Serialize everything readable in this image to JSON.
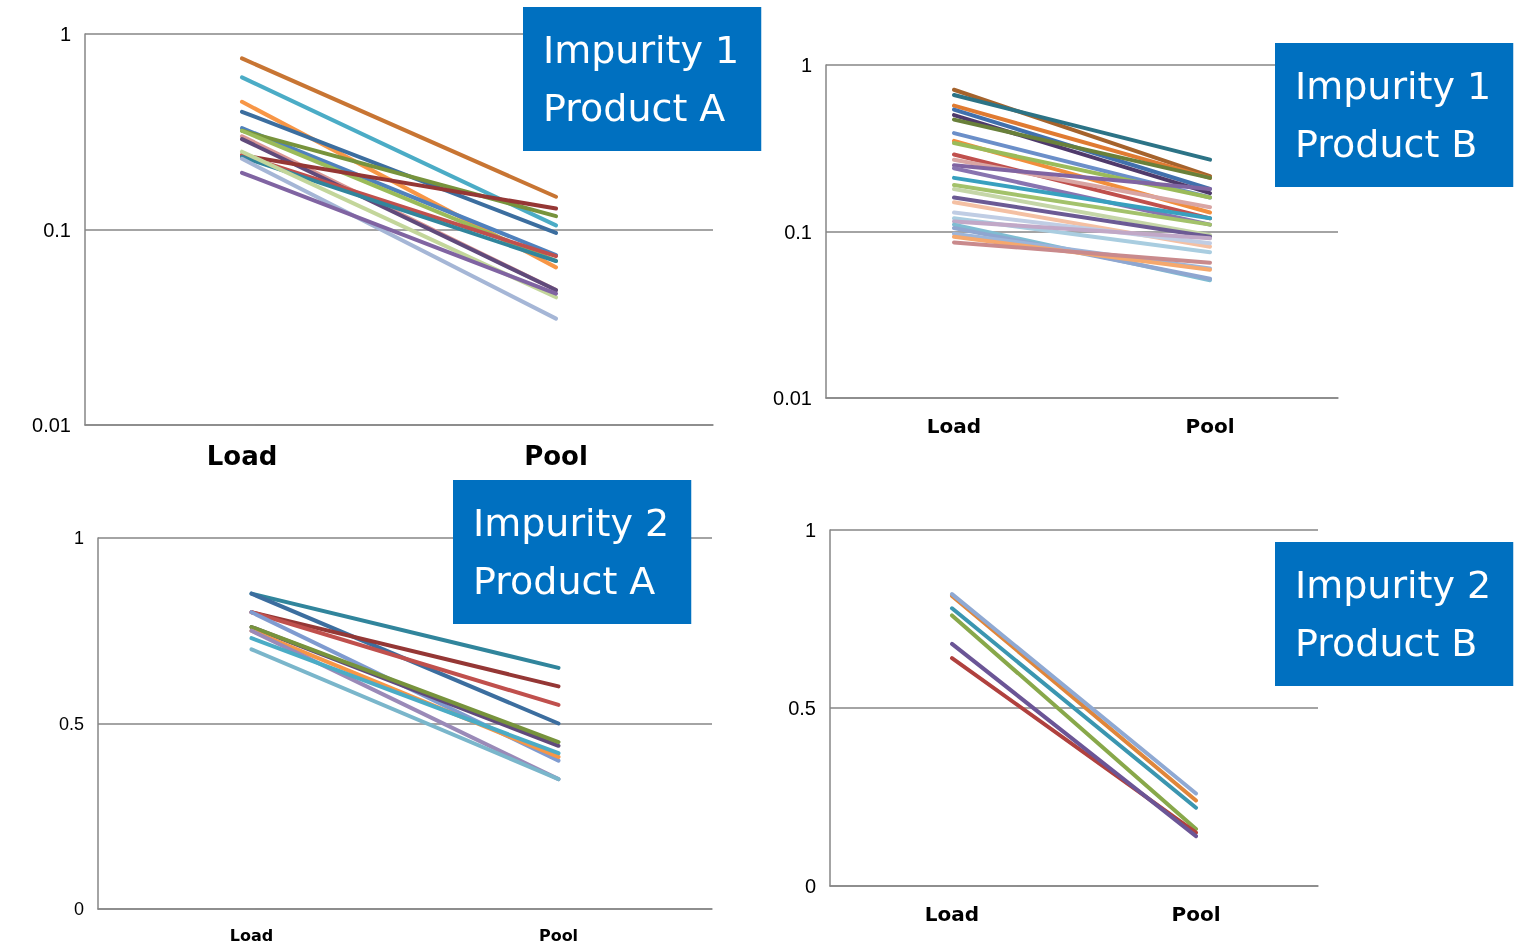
{
  "chart_data": [
    {
      "type": "line",
      "title": "Impurity 1\nProduct A",
      "categories": [
        "Load",
        "Pool"
      ],
      "log": "y",
      "ylim": [
        0.01,
        1
      ],
      "yticks": [
        0.01,
        0.1,
        1
      ],
      "grid": "y",
      "series": [
        {
          "color": "#c87533",
          "values": [
            0.75,
            0.147
          ]
        },
        {
          "color": "#4bacc6",
          "values": [
            0.6,
            0.105
          ]
        },
        {
          "color": "#f79646",
          "values": [
            0.45,
            0.064
          ]
        },
        {
          "color": "#3c6e9f",
          "values": [
            0.4,
            0.096
          ]
        },
        {
          "color": "#4f81bd",
          "values": [
            0.33,
            0.074
          ]
        },
        {
          "color": "#77933c",
          "values": [
            0.32,
            0.117
          ]
        },
        {
          "color": "#9bbb59",
          "values": [
            0.32,
            0.069
          ]
        },
        {
          "color": "#d99694",
          "values": [
            0.3,
            0.049
          ]
        },
        {
          "color": "#604a7b",
          "values": [
            0.29,
            0.049
          ]
        },
        {
          "color": "#953735",
          "values": [
            0.24,
            0.128
          ]
        },
        {
          "color": "#c0504d",
          "values": [
            0.24,
            0.073
          ]
        },
        {
          "color": "#31859c",
          "values": [
            0.235,
            0.069
          ]
        },
        {
          "color": "#c3d69b",
          "values": [
            0.25,
            0.045
          ]
        },
        {
          "color": "#a5b6d6",
          "values": [
            0.23,
            0.035
          ]
        },
        {
          "color": "#8064a2",
          "values": [
            0.195,
            0.047
          ]
        }
      ]
    },
    {
      "type": "line",
      "title": "Impurity 1\nProduct B",
      "categories": [
        "Load",
        "Pool"
      ],
      "log": "y",
      "ylim": [
        0.01,
        1
      ],
      "yticks": [
        0.01,
        0.1,
        1
      ],
      "grid": "y",
      "series": [
        {
          "color": "#a5632c",
          "values": [
            0.71,
            0.215
          ]
        },
        {
          "color": "#2c7386",
          "values": [
            0.66,
            0.27
          ]
        },
        {
          "color": "#e07b32",
          "values": [
            0.57,
            0.21
          ]
        },
        {
          "color": "#4170ad",
          "values": [
            0.54,
            0.18
          ]
        },
        {
          "color": "#4f3a6b",
          "values": [
            0.5,
            0.17
          ]
        },
        {
          "color": "#69803a",
          "values": [
            0.47,
            0.21
          ]
        },
        {
          "color": "#6b8fc9",
          "values": [
            0.39,
            0.16
          ]
        },
        {
          "color": "#f28e3c",
          "values": [
            0.35,
            0.13
          ]
        },
        {
          "color": "#9bbb59",
          "values": [
            0.34,
            0.16
          ]
        },
        {
          "color": "#c0504d",
          "values": [
            0.29,
            0.12
          ]
        },
        {
          "color": "#d9a5a3",
          "values": [
            0.27,
            0.14
          ]
        },
        {
          "color": "#8064a2",
          "values": [
            0.25,
            0.18
          ]
        },
        {
          "color": "#8874b0",
          "values": [
            0.24,
            0.11
          ]
        },
        {
          "color": "#38a0bf",
          "values": [
            0.21,
            0.12
          ]
        },
        {
          "color": "#a3c26b",
          "values": [
            0.19,
            0.11
          ]
        },
        {
          "color": "#c5d6a8",
          "values": [
            0.18,
            0.095
          ]
        },
        {
          "color": "#6b5a94",
          "values": [
            0.16,
            0.093
          ]
        },
        {
          "color": "#f4c0a3",
          "values": [
            0.15,
            0.081
          ]
        },
        {
          "color": "#c0cde4",
          "values": [
            0.13,
            0.085
          ]
        },
        {
          "color": "#a9cde0",
          "values": [
            0.12,
            0.075
          ]
        },
        {
          "color": "#c1a8c7",
          "values": [
            0.115,
            0.091
          ]
        },
        {
          "color": "#7fbcd2",
          "values": [
            0.11,
            0.051
          ]
        },
        {
          "color": "#8fa6d0",
          "values": [
            0.105,
            0.052
          ]
        },
        {
          "color": "#9cb5da",
          "values": [
            0.097,
            0.06
          ]
        },
        {
          "color": "#f5a86d",
          "values": [
            0.093,
            0.059
          ]
        },
        {
          "color": "#c98a8c",
          "values": [
            0.086,
            0.065
          ]
        }
      ]
    },
    {
      "type": "line",
      "title": "Impurity 2\nProduct A",
      "categories": [
        "Load",
        "Pool"
      ],
      "ylim": [
        0,
        1
      ],
      "yticks": [
        0,
        0.5,
        1
      ],
      "grid": "y",
      "series": [
        {
          "color": "#31859c",
          "values": [
            0.85,
            0.65
          ]
        },
        {
          "color": "#3c6e9f",
          "values": [
            0.85,
            0.5
          ]
        },
        {
          "color": "#953735",
          "values": [
            0.8,
            0.6
          ]
        },
        {
          "color": "#c0504d",
          "values": [
            0.8,
            0.55
          ]
        },
        {
          "color": "#7f9bd0",
          "values": [
            0.8,
            0.4
          ]
        },
        {
          "color": "#604a7b",
          "values": [
            0.76,
            0.44
          ]
        },
        {
          "color": "#77933c",
          "values": [
            0.76,
            0.45
          ]
        },
        {
          "color": "#f79646",
          "values": [
            0.75,
            0.41
          ]
        },
        {
          "color": "#9a8ab8",
          "values": [
            0.75,
            0.35
          ]
        },
        {
          "color": "#4bacc6",
          "values": [
            0.73,
            0.42
          ]
        },
        {
          "color": "#7ab6cb",
          "values": [
            0.7,
            0.35
          ]
        }
      ]
    },
    {
      "type": "line",
      "title": "Impurity 2\nProduct B",
      "categories": [
        "Load",
        "Pool"
      ],
      "ylim": [
        0,
        1
      ],
      "yticks": [
        0,
        0.5,
        1
      ],
      "grid": "y",
      "series": [
        {
          "color": "#e0863a",
          "values": [
            0.815,
            0.24
          ]
        },
        {
          "color": "#8fa9d3",
          "values": [
            0.82,
            0.26
          ]
        },
        {
          "color": "#3b96b0",
          "values": [
            0.78,
            0.22
          ]
        },
        {
          "color": "#88a84a",
          "values": [
            0.76,
            0.16
          ]
        },
        {
          "color": "#b0413e",
          "values": [
            0.64,
            0.15
          ]
        },
        {
          "color": "#6b5596",
          "values": [
            0.68,
            0.14
          ]
        }
      ]
    }
  ]
}
